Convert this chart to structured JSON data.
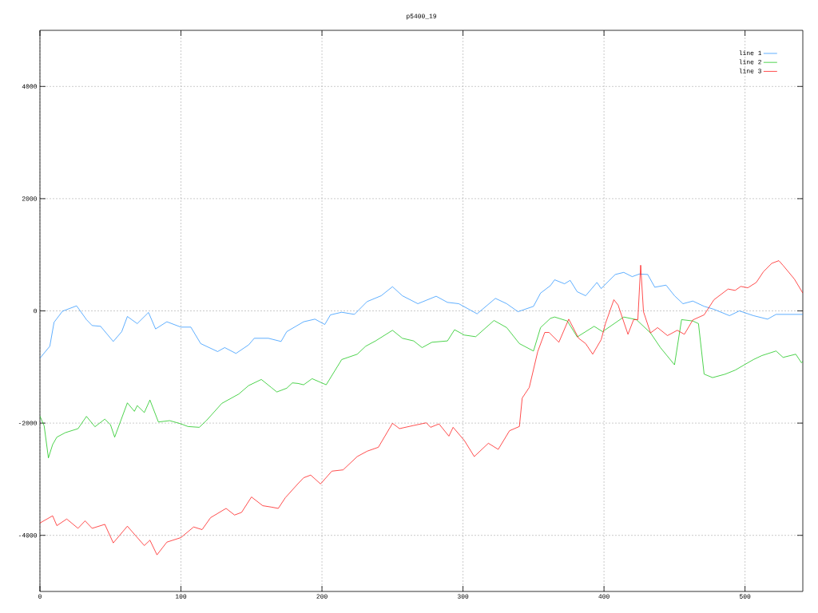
{
  "chart_data": {
    "type": "line",
    "title": "p5400_19",
    "xlim": [
      0,
      541
    ],
    "ylim": [
      -5000,
      5000
    ],
    "xticks": [
      0,
      100,
      200,
      300,
      400,
      500
    ],
    "yticks": [
      -4000,
      -2000,
      0,
      2000,
      4000
    ],
    "grid": true,
    "legend": "top right",
    "series": [
      {
        "name": "line 1",
        "color": "#1a8cff",
        "x": [
          0,
          7,
          10,
          16,
          26,
          33,
          37,
          43,
          52,
          58,
          62,
          69,
          77,
          82,
          90,
          100,
          107,
          114,
          126,
          131,
          139,
          148,
          152,
          162,
          171,
          175,
          187,
          195,
          202,
          206,
          214,
          223,
          232,
          242,
          250,
          257,
          268,
          281,
          289,
          297,
          310,
          323,
          331,
          339,
          350,
          355,
          362,
          365,
          372,
          376,
          381,
          387,
          395,
          398,
          408,
          414,
          420,
          425,
          431,
          436,
          444,
          450,
          456,
          463,
          471,
          478,
          489,
          496,
          506,
          516,
          522,
          541
        ],
        "values": [
          -843,
          -630,
          -204,
          -5,
          90,
          -156,
          -261,
          -275,
          -545,
          -370,
          -100,
          -227,
          -28,
          -322,
          -194,
          -289,
          -289,
          -583,
          -725,
          -654,
          -758,
          -606,
          -488,
          -488,
          -545,
          -370,
          -194,
          -147,
          -242,
          -71,
          -24,
          -62,
          166,
          270,
          431,
          270,
          128,
          261,
          152,
          128,
          -52,
          223,
          128,
          -14,
          81,
          317,
          450,
          554,
          483,
          544,
          341,
          270,
          507,
          398,
          649,
          686,
          610,
          657,
          649,
          422,
          459,
          270,
          128,
          175,
          81,
          28,
          -85,
          0,
          -85,
          -147,
          -62,
          -62
        ]
      },
      {
        "name": "line 2",
        "color": "#00c000",
        "x": [
          0,
          3,
          6,
          9,
          12,
          18,
          27,
          33,
          39,
          46,
          50,
          53,
          62,
          67,
          69,
          74,
          78,
          84,
          92,
          100,
          105,
          113,
          118,
          129,
          141,
          148,
          157,
          164,
          168,
          175,
          179,
          183,
          187,
          193,
          203,
          214,
          225,
          231,
          238,
          250,
          257,
          265,
          271,
          278,
          289,
          294,
          301,
          309,
          322,
          331,
          340,
          350,
          355,
          362,
          365,
          374,
          381,
          393,
          399,
          414,
          423,
          433,
          440,
          450,
          455,
          463,
          467,
          471,
          477,
          486,
          493,
          506,
          512,
          522,
          527,
          536,
          540,
          541
        ],
        "values": [
          -1876,
          -2051,
          -2620,
          -2383,
          -2250,
          -2170,
          -2099,
          -1880,
          -2065,
          -1929,
          -2027,
          -2250,
          -1639,
          -1790,
          -1688,
          -1812,
          -1588,
          -1980,
          -1956,
          -2013,
          -2061,
          -2075,
          -1956,
          -1648,
          -1482,
          -1331,
          -1222,
          -1364,
          -1445,
          -1378,
          -1283,
          -1293,
          -1317,
          -1208,
          -1317,
          -867,
          -772,
          -630,
          -535,
          -346,
          -488,
          -535,
          -654,
          -559,
          -535,
          -336,
          -431,
          -460,
          -171,
          -298,
          -583,
          -715,
          -298,
          -133,
          -109,
          -180,
          -464,
          -275,
          -370,
          -109,
          -156,
          -393,
          -654,
          -961,
          -156,
          -180,
          -227,
          -1127,
          -1189,
          -1127,
          -1056,
          -867,
          -796,
          -715,
          -829,
          -772,
          -924,
          -900
        ]
      },
      {
        "name": "line 3",
        "color": "#ff0000",
        "x": [
          0,
          9,
          12,
          19,
          27,
          32,
          37,
          46,
          52,
          62,
          74,
          78,
          83,
          90,
          100,
          109,
          115,
          121,
          132,
          138,
          143,
          150,
          158,
          164,
          169,
          174,
          183,
          187,
          192,
          199,
          207,
          215,
          225,
          232,
          240,
          250,
          255,
          265,
          274,
          277,
          283,
          290,
          293,
          301,
          308,
          318,
          325,
          333,
          340,
          342,
          347,
          353,
          358,
          361,
          368,
          375,
          382,
          387,
          392,
          398,
          401,
          407,
          410,
          417,
          421,
          424,
          426,
          428,
          433,
          438,
          445,
          452,
          457,
          463,
          471,
          478,
          488,
          493,
          497,
          502,
          508,
          513,
          519,
          524,
          527,
          535,
          541
        ],
        "values": [
          -3780,
          -3652,
          -3827,
          -3709,
          -3875,
          -3742,
          -3875,
          -3804,
          -4135,
          -3837,
          -4182,
          -4087,
          -4348,
          -4121,
          -4040,
          -3851,
          -3898,
          -3685,
          -3520,
          -3638,
          -3591,
          -3316,
          -3472,
          -3496,
          -3520,
          -3330,
          -3079,
          -2974,
          -2926,
          -3084,
          -2856,
          -2833,
          -2596,
          -2501,
          -2430,
          -2004,
          -2098,
          -2042,
          -1995,
          -2075,
          -2014,
          -2232,
          -2075,
          -2311,
          -2596,
          -2359,
          -2468,
          -2136,
          -2060,
          -1553,
          -1364,
          -725,
          -384,
          -384,
          -559,
          -147,
          -488,
          -583,
          -772,
          -512,
          -227,
          199,
          104,
          -417,
          -156,
          -156,
          814,
          -14,
          -393,
          -298,
          -440,
          -346,
          -417,
          -161,
          -71,
          199,
          389,
          365,
          436,
          412,
          507,
          696,
          848,
          895,
          810,
          568,
          317
        ]
      }
    ]
  }
}
